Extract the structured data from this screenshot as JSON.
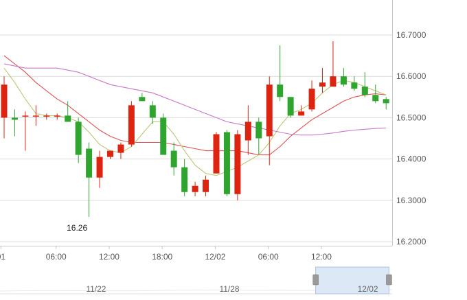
{
  "chart_data": {
    "type": "candlestick",
    "y_ticks": [
      "16.7000",
      "16.6000",
      "16.5000",
      "16.4000",
      "16.3000",
      "16.2000"
    ],
    "ylim": [
      16.2,
      16.7
    ],
    "x_tick_labels": [
      {
        "label": "01",
        "index": -0.3
      },
      {
        "label": "06:00",
        "index": 4.9
      },
      {
        "label": "12:00",
        "index": 9.9
      },
      {
        "label": "18:00",
        "index": 14.9
      },
      {
        "label": "12/02",
        "index": 19.9
      },
      {
        "label": "06:00",
        "index": 24.9
      },
      {
        "label": "12:00",
        "index": 29.9
      }
    ],
    "annotations": [
      {
        "text": "16.26",
        "index": 7,
        "value": 16.26
      }
    ],
    "candles": [
      {
        "o": 16.5,
        "h": 16.6,
        "l": 16.45,
        "c": 16.58
      },
      {
        "o": 16.5,
        "h": 16.52,
        "l": 16.455,
        "c": 16.495
      },
      {
        "o": 16.505,
        "h": 16.515,
        "l": 16.42,
        "c": 16.505
      },
      {
        "o": 16.505,
        "h": 16.53,
        "l": 16.48,
        "c": 16.505
      },
      {
        "o": 16.505,
        "h": 16.51,
        "l": 16.495,
        "c": 16.505
      },
      {
        "o": 16.505,
        "h": 16.51,
        "l": 16.495,
        "c": 16.505
      },
      {
        "o": 16.505,
        "h": 16.54,
        "l": 16.49,
        "c": 16.49
      },
      {
        "o": 16.49,
        "h": 16.5,
        "l": 16.39,
        "c": 16.41
      },
      {
        "o": 16.425,
        "h": 16.44,
        "l": 16.26,
        "c": 16.355
      },
      {
        "o": 16.355,
        "h": 16.42,
        "l": 16.33,
        "c": 16.405
      },
      {
        "o": 16.405,
        "h": 16.42,
        "l": 16.4,
        "c": 16.42
      },
      {
        "o": 16.415,
        "h": 16.44,
        "l": 16.4,
        "c": 16.435
      },
      {
        "o": 16.435,
        "h": 16.54,
        "l": 16.43,
        "c": 16.53
      },
      {
        "o": 16.55,
        "h": 16.56,
        "l": 16.54,
        "c": 16.54
      },
      {
        "o": 16.53,
        "h": 16.54,
        "l": 16.485,
        "c": 16.5
      },
      {
        "o": 16.5,
        "h": 16.51,
        "l": 16.41,
        "c": 16.41
      },
      {
        "o": 16.42,
        "h": 16.44,
        "l": 16.36,
        "c": 16.38
      },
      {
        "o": 16.38,
        "h": 16.4,
        "l": 16.31,
        "c": 16.32
      },
      {
        "o": 16.32,
        "h": 16.345,
        "l": 16.31,
        "c": 16.335
      },
      {
        "o": 16.32,
        "h": 16.36,
        "l": 16.31,
        "c": 16.35
      },
      {
        "o": 16.365,
        "h": 16.465,
        "l": 16.365,
        "c": 16.46
      },
      {
        "o": 16.465,
        "h": 16.47,
        "l": 16.31,
        "c": 16.315
      },
      {
        "o": 16.315,
        "h": 16.47,
        "l": 16.3,
        "c": 16.46
      },
      {
        "o": 16.445,
        "h": 16.53,
        "l": 16.41,
        "c": 16.49
      },
      {
        "o": 16.49,
        "h": 16.5,
        "l": 16.41,
        "c": 16.45
      },
      {
        "o": 16.455,
        "h": 16.6,
        "l": 16.385,
        "c": 16.58
      },
      {
        "o": 16.58,
        "h": 16.675,
        "l": 16.54,
        "c": 16.55
      },
      {
        "o": 16.55,
        "h": 16.55,
        "l": 16.5,
        "c": 16.505
      },
      {
        "o": 16.505,
        "h": 16.53,
        "l": 16.505,
        "c": 16.515
      },
      {
        "o": 16.52,
        "h": 16.59,
        "l": 16.515,
        "c": 16.57
      },
      {
        "o": 16.575,
        "h": 16.62,
        "l": 16.56,
        "c": 16.585
      },
      {
        "o": 16.575,
        "h": 16.685,
        "l": 16.575,
        "c": 16.6
      },
      {
        "o": 16.6,
        "h": 16.62,
        "l": 16.575,
        "c": 16.58
      },
      {
        "o": 16.585,
        "h": 16.6,
        "l": 16.565,
        "c": 16.57
      },
      {
        "o": 16.575,
        "h": 16.61,
        "l": 16.55,
        "c": 16.555
      },
      {
        "o": 16.555,
        "h": 16.58,
        "l": 16.535,
        "c": 16.54
      },
      {
        "o": 16.545,
        "h": 16.55,
        "l": 16.52,
        "c": 16.535
      }
    ],
    "moving_averages": [
      {
        "color": "#e05050",
        "values": [
          16.65,
          16.63,
          16.61,
          16.585,
          16.565,
          16.545,
          16.53,
          16.51,
          16.49,
          16.47,
          16.455,
          16.445,
          16.44,
          16.44,
          16.44,
          16.44,
          16.435,
          16.43,
          16.425,
          16.42,
          16.42,
          16.42,
          16.42,
          16.415,
          16.41,
          16.41,
          16.43,
          16.455,
          16.475,
          16.495,
          16.51,
          16.525,
          16.54,
          16.55,
          16.555,
          16.558,
          16.555
        ]
      },
      {
        "color": "#b8c878",
        "values": [
          16.62,
          16.585,
          16.545,
          16.51,
          16.505,
          16.505,
          16.5,
          16.49,
          16.465,
          16.435,
          16.42,
          16.415,
          16.43,
          16.46,
          16.49,
          16.49,
          16.46,
          16.42,
          16.385,
          16.365,
          16.36,
          16.37,
          16.38,
          16.395,
          16.41,
          16.44,
          16.48,
          16.51,
          16.52,
          16.535,
          16.56,
          16.58,
          16.59,
          16.585,
          16.575,
          16.565,
          16.555
        ]
      },
      {
        "color": "#c878c8",
        "values": [
          16.63,
          16.625,
          16.62,
          16.62,
          16.62,
          16.62,
          16.615,
          16.61,
          16.6,
          16.59,
          16.58,
          16.575,
          16.57,
          16.565,
          16.56,
          16.55,
          16.54,
          16.53,
          16.52,
          16.51,
          16.5,
          16.49,
          16.485,
          16.48,
          16.475,
          16.47,
          16.465,
          16.46,
          16.458,
          16.458,
          16.46,
          16.463,
          16.467,
          16.47,
          16.472,
          16.474,
          16.475
        ]
      }
    ],
    "colors": {
      "up": "#dd2411",
      "down": "#2fa52f",
      "grid": "#dcdcdc",
      "axis": "#c8c8c8"
    },
    "navigator": {
      "labels": [
        {
          "text": "11/22",
          "pos": 0.245
        },
        {
          "text": "11/28",
          "pos": 0.585
        },
        {
          "text": "12/02",
          "pos": 0.938
        }
      ],
      "selection": [
        0.805,
        0.992
      ],
      "fill": "#dce8f5",
      "border": "#a8c3e0"
    }
  }
}
